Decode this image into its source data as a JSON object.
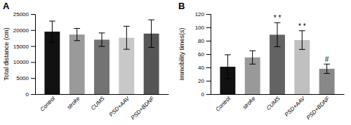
{
  "chart_data": [
    {
      "type": "bar",
      "title": "A",
      "categories": [
        "Control",
        "stroke",
        "CUMS",
        "PSD+AAV",
        "PSD+BDNF"
      ],
      "values": [
        19500,
        18600,
        17000,
        17600,
        18900
      ],
      "errors": [
        3300,
        1900,
        2100,
        3600,
        4300
      ],
      "colors": [
        "#111111",
        "#9a9a9a",
        "#737373",
        "#c8c8c8",
        "#555555"
      ],
      "ylabel": "Total distance (cm)",
      "ylim": [
        0,
        25000
      ],
      "yticks": [
        0,
        5000,
        10000,
        15000,
        20000,
        25000
      ]
    },
    {
      "type": "bar",
      "title": "B",
      "categories": [
        "Control",
        "stroke",
        "CUMS",
        "PSD+AAV",
        "PSD+BDNF"
      ],
      "values": [
        41,
        55,
        89,
        81,
        38
      ],
      "errors": [
        18,
        10,
        18,
        14,
        7
      ],
      "colors": [
        "#111111",
        "#999999",
        "#636363",
        "#c0c0c0",
        "#888888"
      ],
      "ylabel": "Immobility times(s)",
      "ylim": [
        0,
        120
      ],
      "yticks": [
        0,
        20,
        40,
        60,
        80,
        100,
        120
      ],
      "annotations": [
        null,
        null,
        "* *",
        "* *",
        "#"
      ]
    }
  ]
}
